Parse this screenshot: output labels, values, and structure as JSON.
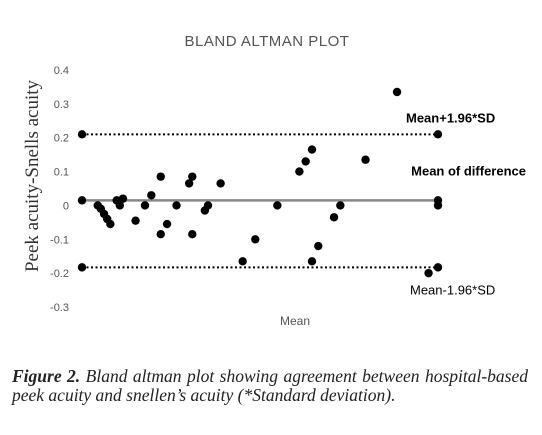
{
  "chart_data": {
    "type": "scatter",
    "title": "BLAND ALTMAN PLOT",
    "xlabel": "Mean",
    "ylabel": "Peek acuity-Snells acuity",
    "ylim": [
      -0.3,
      0.4
    ],
    "yticks": [
      "0.4",
      "0.3",
      "0.2",
      "0.1",
      "0",
      "-0.1",
      "-0.2",
      "-0.3"
    ],
    "ytick_values": [
      0.4,
      0.3,
      0.2,
      0.1,
      0,
      -0.1,
      -0.2,
      -0.3
    ],
    "grid": false,
    "reference_lines": [
      {
        "label": "Mean+1.96*SD",
        "y": 0.21,
        "style": "dotted",
        "bold": true
      },
      {
        "label": "Mean of difference",
        "y": 0.015,
        "style": "solid",
        "bold": true
      },
      {
        "label": "Mean-1.96*SD",
        "y": -0.183,
        "style": "dotted",
        "bold": false
      }
    ],
    "points": [
      {
        "x": 0.0,
        "y": 0.21
      },
      {
        "x": 0.0,
        "y": 0.015
      },
      {
        "x": 0.0,
        "y": -0.183
      },
      {
        "x": 0.05,
        "y": 0.0
      },
      {
        "x": 0.06,
        "y": -0.01
      },
      {
        "x": 0.07,
        "y": -0.025
      },
      {
        "x": 0.08,
        "y": -0.04
      },
      {
        "x": 0.09,
        "y": -0.055
      },
      {
        "x": 0.11,
        "y": 0.015
      },
      {
        "x": 0.12,
        "y": 0.0
      },
      {
        "x": 0.13,
        "y": 0.02
      },
      {
        "x": 0.17,
        "y": -0.045
      },
      {
        "x": 0.2,
        "y": 0.0
      },
      {
        "x": 0.22,
        "y": 0.03
      },
      {
        "x": 0.25,
        "y": -0.085
      },
      {
        "x": 0.25,
        "y": 0.085
      },
      {
        "x": 0.27,
        "y": -0.055
      },
      {
        "x": 0.3,
        "y": 0.0
      },
      {
        "x": 0.34,
        "y": 0.065
      },
      {
        "x": 0.35,
        "y": 0.085
      },
      {
        "x": 0.35,
        "y": -0.085
      },
      {
        "x": 0.39,
        "y": -0.015
      },
      {
        "x": 0.4,
        "y": 0.0
      },
      {
        "x": 0.44,
        "y": 0.065
      },
      {
        "x": 0.51,
        "y": -0.165
      },
      {
        "x": 0.55,
        "y": -0.1
      },
      {
        "x": 0.62,
        "y": 0.0
      },
      {
        "x": 0.69,
        "y": 0.1
      },
      {
        "x": 0.71,
        "y": 0.13
      },
      {
        "x": 0.73,
        "y": 0.165
      },
      {
        "x": 0.73,
        "y": -0.165
      },
      {
        "x": 0.75,
        "y": -0.12
      },
      {
        "x": 0.8,
        "y": -0.035
      },
      {
        "x": 0.82,
        "y": 0.0
      },
      {
        "x": 0.9,
        "y": 0.135
      },
      {
        "x": 1.0,
        "y": 0.335
      },
      {
        "x": 1.1,
        "y": -0.2
      },
      {
        "x": 1.13,
        "y": 0.21
      },
      {
        "x": 1.13,
        "y": 0.015
      },
      {
        "x": 1.13,
        "y": 0.0
      },
      {
        "x": 1.13,
        "y": -0.183
      }
    ],
    "xlim": [
      0,
      1.13
    ]
  },
  "caption": {
    "label": "Figure 2.",
    "text": "Bland altman plot showing agreement between hospital-based peek acuity and snellen’s acuity (*Standard deviation)."
  }
}
